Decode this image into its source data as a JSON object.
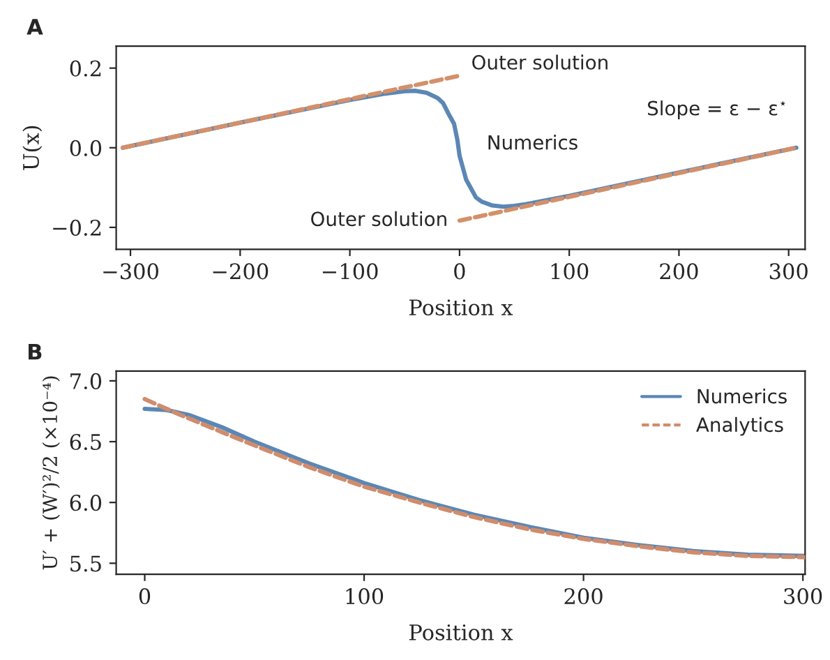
{
  "chart_data": [
    {
      "type": "line",
      "title": "A",
      "xlabel": "Position x",
      "ylabel": "U(x)",
      "xlim": [
        -313,
        315
      ],
      "ylim": [
        -0.255,
        0.255
      ],
      "xticks": [
        -300,
        -200,
        -100,
        0,
        100,
        200,
        300
      ],
      "yticks": [
        {
          "value": -0.2,
          "label": "−0.2"
        },
        {
          "value": 0,
          "label": "0.0"
        },
        {
          "value": 0.2,
          "label": "0.2"
        }
      ],
      "grid": false,
      "legend": false,
      "series": [
        {
          "name": "Outer solution",
          "color": "#d4906a",
          "line_style": "dashed",
          "x": [
            -307,
            0
          ],
          "values": [
            0,
            0.181
          ]
        },
        {
          "name": "Outer solution",
          "color": "#d4906a",
          "line_style": "dashed",
          "x": [
            0,
            307
          ],
          "values": [
            -0.183,
            0
          ]
        },
        {
          "name": "Numerics",
          "color": "#5b87b5",
          "line_style": "solid",
          "x": [
            -307,
            -200,
            -100,
            -70,
            -50,
            -40,
            -30,
            -20,
            -15,
            -10,
            -5,
            -2,
            0,
            3,
            6,
            10,
            15,
            20,
            30,
            40,
            50,
            60,
            100,
            200,
            307
          ],
          "values": [
            0,
            0.063,
            0.12,
            0.135,
            0.142,
            0.143,
            0.138,
            0.125,
            0.112,
            0.085,
            0.06,
            0.02,
            -0.02,
            -0.05,
            -0.08,
            -0.1,
            -0.125,
            -0.135,
            -0.145,
            -0.148,
            -0.146,
            -0.142,
            -0.121,
            -0.062,
            0
          ]
        }
      ],
      "annotations": [
        "Slope = ε − ε$^{⋆}$"
      ]
    },
    {
      "type": "line",
      "title": "B",
      "xlabel": "Position x",
      "ylabel": "U′ + (W′)²/2 (×10⁻⁴)",
      "xlim": [
        -13,
        301
      ],
      "ylim": [
        5.41,
        7.08
      ],
      "xticks": [
        0,
        100,
        200,
        300
      ],
      "yticks": [
        {
          "value": 5.5,
          "label": "5.5"
        },
        {
          "value": 6,
          "label": "6.0"
        },
        {
          "value": 6.5,
          "label": "6.5"
        },
        {
          "value": 7,
          "label": "7.0"
        }
      ],
      "grid": false,
      "legend": "top right",
      "series": [
        {
          "name": "Numerics",
          "color": "#5b87b5",
          "line_style": "solid",
          "x": [
            0,
            10,
            20,
            35,
            50,
            75,
            100,
            125,
            150,
            175,
            200,
            225,
            250,
            275,
            301
          ],
          "values": [
            6.77,
            6.76,
            6.72,
            6.62,
            6.5,
            6.32,
            6.16,
            6.02,
            5.9,
            5.8,
            5.71,
            5.65,
            5.6,
            5.57,
            5.56
          ]
        },
        {
          "name": "Analytics",
          "color": "#d08c6c",
          "line_style": "dashed",
          "x": [
            0,
            15,
            35,
            50,
            75,
            100,
            125,
            150,
            175,
            200,
            225,
            250,
            275,
            301
          ],
          "values": [
            6.85,
            6.73,
            6.58,
            6.47,
            6.29,
            6.13,
            6.0,
            5.88,
            5.78,
            5.7,
            5.64,
            5.59,
            5.56,
            5.55
          ]
        }
      ]
    }
  ]
}
